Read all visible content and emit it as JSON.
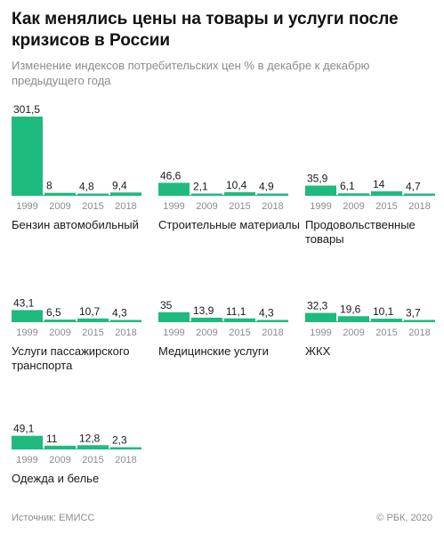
{
  "header": {
    "title": "Как менялись цены на товары и услуги после кризисов в России",
    "subtitle": "Изменение индексов потребительских цен % в декабре к декабрю предыдущего года"
  },
  "footer": {
    "source": "Источник: ЕМИСС",
    "copyright": "© РБК, 2020"
  },
  "colors": {
    "bar": "#1fba7e",
    "baseline": "#1fba7e",
    "tick": "#8c8c8c",
    "text": "#1a1a1a"
  },
  "chart_data": [
    {
      "type": "bar",
      "title": "Бензин автомобильный",
      "categories": [
        "1999",
        "2009",
        "2015",
        "2018"
      ],
      "values": [
        301.5,
        8,
        4.8,
        9.4
      ],
      "labels": [
        "301,5",
        "8",
        "4,8",
        "9,4"
      ],
      "ylim": [
        0,
        301.5
      ]
    },
    {
      "type": "bar",
      "title": "Строительные материалы",
      "categories": [
        "1999",
        "2009",
        "2015",
        "2018"
      ],
      "values": [
        46.6,
        2.1,
        10.4,
        4.9
      ],
      "labels": [
        "46,6",
        "2,1",
        "10,4",
        "4,9"
      ],
      "ylim": [
        0,
        301.5
      ]
    },
    {
      "type": "bar",
      "title": "Продовольственные товары",
      "categories": [
        "1999",
        "2009",
        "2015",
        "2018"
      ],
      "values": [
        35.9,
        6.1,
        14,
        4.7
      ],
      "labels": [
        "35,9",
        "6,1",
        "14",
        "4,7"
      ],
      "ylim": [
        0,
        301.5
      ]
    },
    {
      "type": "bar",
      "title": "Услуги пассажирского транспорта",
      "categories": [
        "1999",
        "2009",
        "2015",
        "2018"
      ],
      "values": [
        43.1,
        6.5,
        10.7,
        4.3
      ],
      "labels": [
        "43,1",
        "6,5",
        "10,7",
        "4,3"
      ],
      "ylim": [
        0,
        301.5
      ]
    },
    {
      "type": "bar",
      "title": "Медицинские услуги",
      "categories": [
        "1999",
        "2009",
        "2015",
        "2018"
      ],
      "values": [
        35,
        13.9,
        11.1,
        4.3
      ],
      "labels": [
        "35",
        "13,9",
        "11,1",
        "4,3"
      ],
      "ylim": [
        0,
        301.5
      ]
    },
    {
      "type": "bar",
      "title": "ЖКХ",
      "categories": [
        "1999",
        "2009",
        "2015",
        "2018"
      ],
      "values": [
        32.3,
        19.6,
        10.1,
        3.7
      ],
      "labels": [
        "32,3",
        "19,6",
        "10,1",
        "3,7"
      ],
      "ylim": [
        0,
        301.5
      ]
    },
    {
      "type": "bar",
      "title": "Одежда и белье",
      "categories": [
        "1999",
        "2009",
        "2015",
        "2018"
      ],
      "values": [
        49.1,
        11,
        12.8,
        2.3
      ],
      "labels": [
        "49,1",
        "11",
        "12,8",
        "2,3"
      ],
      "ylim": [
        0,
        301.5
      ]
    }
  ]
}
